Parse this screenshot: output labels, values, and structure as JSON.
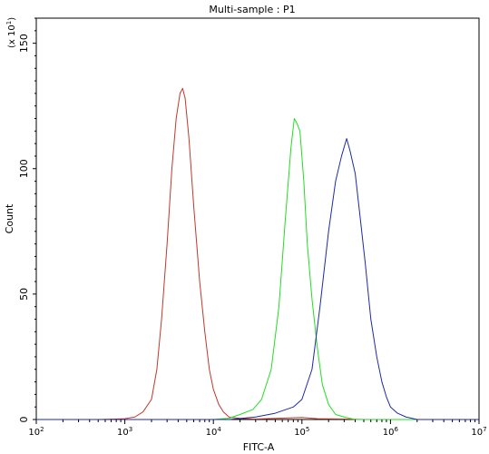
{
  "chart_data": {
    "type": "line",
    "title": "Multi-sample : P1",
    "xlabel": "FITC-A",
    "ylabel": "Count",
    "y_multiplier": "(x 10",
    "y_multiplier_exp": "1",
    "y_multiplier_close": ")",
    "x_scale": "log",
    "xlim": [
      100,
      10000000
    ],
    "ylim": [
      0,
      160
    ],
    "x_ticks": [
      {
        "value": 100,
        "base": "10",
        "exp": "2"
      },
      {
        "value": 1000,
        "base": "10",
        "exp": "3"
      },
      {
        "value": 10000,
        "base": "10",
        "exp": "4"
      },
      {
        "value": 100000,
        "base": "10",
        "exp": "5"
      },
      {
        "value": 1000000,
        "base": "10",
        "exp": "6"
      },
      {
        "value": 10000000,
        "base": "10",
        "exp": "7"
      }
    ],
    "y_ticks": [
      {
        "value": 0,
        "label": "0"
      },
      {
        "value": 50,
        "label": "50"
      },
      {
        "value": 100,
        "label": "100"
      },
      {
        "value": 150,
        "label": "150"
      }
    ],
    "grid": false,
    "legend": "none",
    "series": [
      {
        "color": "#c0392b",
        "points": [
          [
            100,
            0
          ],
          [
            500,
            0
          ],
          [
            1000,
            0.3
          ],
          [
            1300,
            1
          ],
          [
            1600,
            3
          ],
          [
            2000,
            8
          ],
          [
            2300,
            20
          ],
          [
            2600,
            40
          ],
          [
            3000,
            70
          ],
          [
            3400,
            100
          ],
          [
            3800,
            120
          ],
          [
            4200,
            130
          ],
          [
            4500,
            132
          ],
          [
            4800,
            128
          ],
          [
            5300,
            112
          ],
          [
            6000,
            85
          ],
          [
            7000,
            55
          ],
          [
            8000,
            35
          ],
          [
            9000,
            20
          ],
          [
            10000,
            12
          ],
          [
            11500,
            6
          ],
          [
            13000,
            3
          ],
          [
            15000,
            1
          ],
          [
            20000,
            0.4
          ],
          [
            30000,
            0.2
          ],
          [
            100000,
            0.8
          ],
          [
            150000,
            0.3
          ],
          [
            300000,
            0.2
          ],
          [
            500000,
            0
          ],
          [
            10000000,
            0
          ]
        ]
      },
      {
        "color": "#22dd22",
        "points": [
          [
            100,
            0
          ],
          [
            10000,
            0
          ],
          [
            15000,
            0.5
          ],
          [
            20000,
            2
          ],
          [
            28000,
            4
          ],
          [
            35000,
            8
          ],
          [
            45000,
            20
          ],
          [
            55000,
            45
          ],
          [
            65000,
            80
          ],
          [
            75000,
            108
          ],
          [
            82000,
            120
          ],
          [
            88000,
            118
          ],
          [
            95000,
            115
          ],
          [
            105000,
            95
          ],
          [
            115000,
            70
          ],
          [
            130000,
            48
          ],
          [
            150000,
            28
          ],
          [
            170000,
            14
          ],
          [
            200000,
            6
          ],
          [
            240000,
            2
          ],
          [
            300000,
            1
          ],
          [
            400000,
            0
          ],
          [
            10000000,
            0
          ]
        ]
      },
      {
        "color": "#1f2aa0",
        "points": [
          [
            100,
            0
          ],
          [
            15000,
            0
          ],
          [
            30000,
            1
          ],
          [
            50000,
            2.5
          ],
          [
            80000,
            5
          ],
          [
            100000,
            8
          ],
          [
            130000,
            20
          ],
          [
            160000,
            45
          ],
          [
            200000,
            75
          ],
          [
            240000,
            95
          ],
          [
            280000,
            105
          ],
          [
            320000,
            112
          ],
          [
            350000,
            107
          ],
          [
            400000,
            98
          ],
          [
            450000,
            82
          ],
          [
            520000,
            62
          ],
          [
            600000,
            40
          ],
          [
            700000,
            25
          ],
          [
            800000,
            15
          ],
          [
            900000,
            9
          ],
          [
            1000000,
            5
          ],
          [
            1200000,
            2.5
          ],
          [
            1500000,
            1
          ],
          [
            2000000,
            0
          ],
          [
            10000000,
            0
          ]
        ]
      }
    ]
  }
}
